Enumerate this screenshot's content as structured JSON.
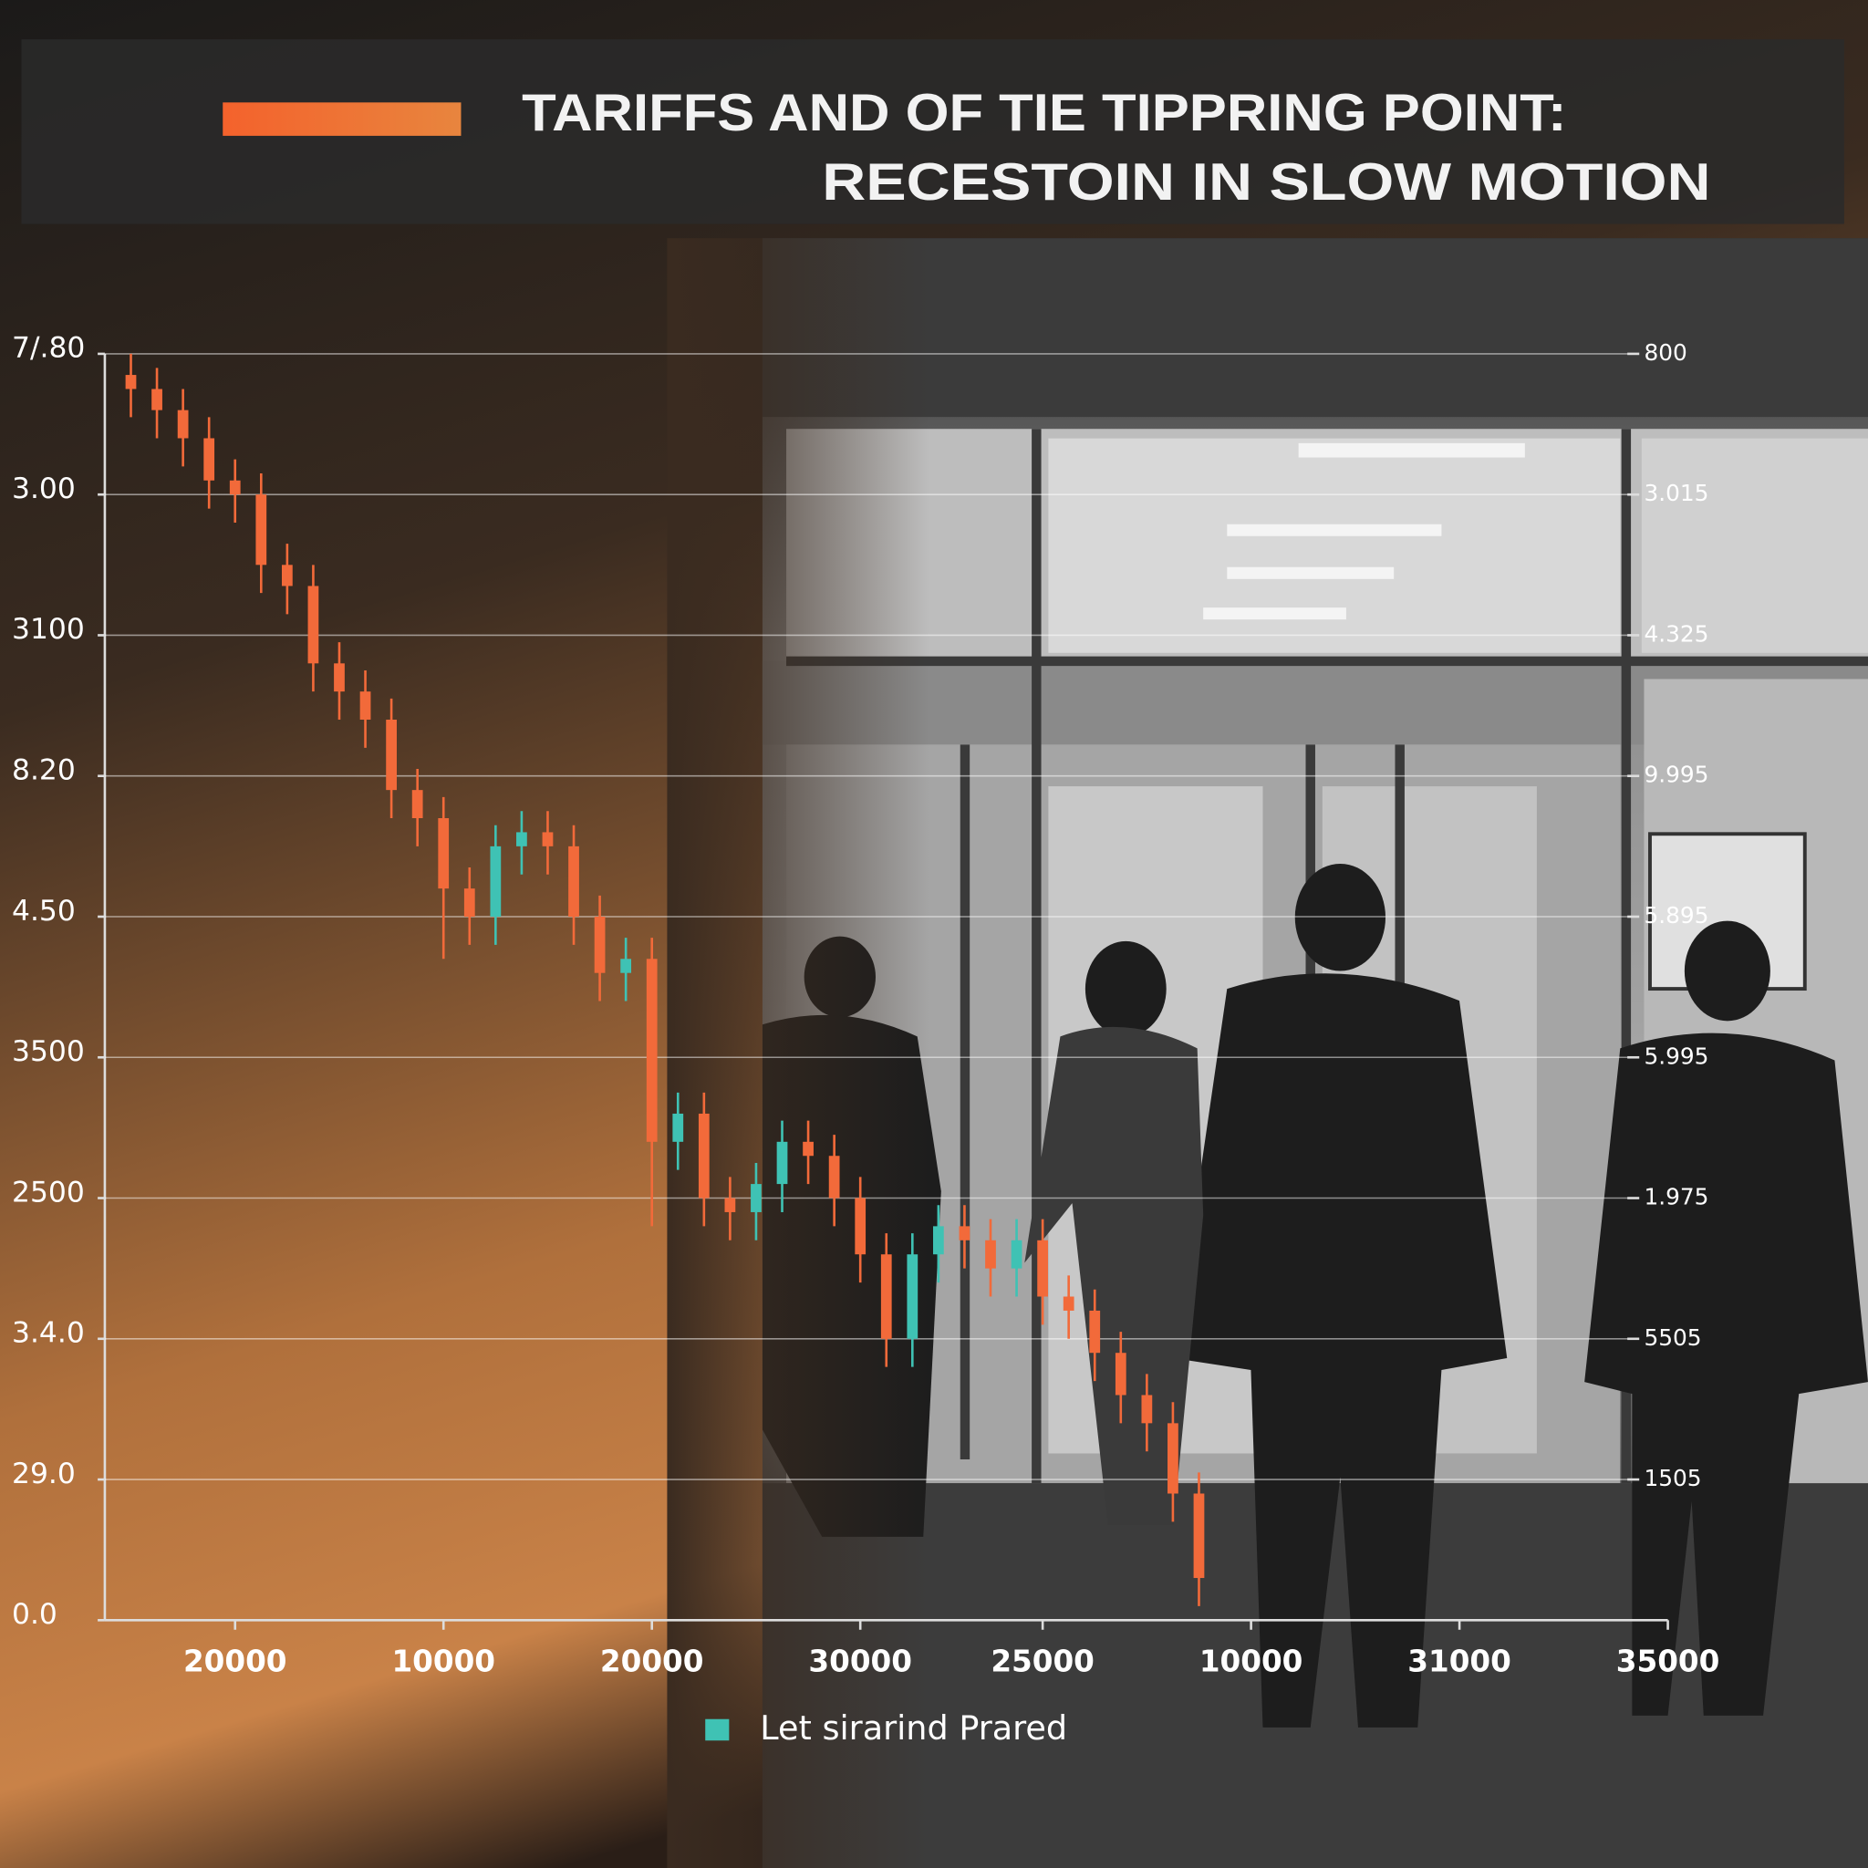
{
  "chart_data": {
    "type": "candlestick",
    "title": "TARIFFS AND OF TIE TIPPRING POINT:",
    "subtitle": "RECESTOIN IN SLOW MOTION",
    "x": [
      1,
      2,
      3,
      4,
      5,
      6,
      7,
      8,
      9,
      10,
      11,
      12,
      13,
      14,
      15,
      16,
      17,
      18,
      19,
      20,
      21,
      22,
      23,
      24,
      25,
      26,
      27,
      28,
      29,
      30,
      31,
      32,
      33,
      34,
      35,
      36,
      37,
      38,
      39,
      40,
      41,
      42
    ],
    "series": [
      {
        "name": "Let sirarind Prared",
        "color": "#3fc2b4",
        "down_color": "#f26a3a",
        "open": [
          8.85,
          8.75,
          8.6,
          8.4,
          8.1,
          8.0,
          7.5,
          7.35,
          6.8,
          6.6,
          6.4,
          5.9,
          5.7,
          5.2,
          5.0,
          5.5,
          5.6,
          5.5,
          5.0,
          4.6,
          4.7,
          3.4,
          3.6,
          3.0,
          2.9,
          3.1,
          3.4,
          3.3,
          3.0,
          2.6,
          2.0,
          2.6,
          2.8,
          2.7,
          2.5,
          2.7,
          2.3,
          2.2,
          1.9,
          1.6,
          1.4,
          0.9
        ],
        "high": [
          9.0,
          8.9,
          8.75,
          8.55,
          8.25,
          8.15,
          7.65,
          7.5,
          6.95,
          6.75,
          6.55,
          6.05,
          5.85,
          5.35,
          5.65,
          5.75,
          5.75,
          5.65,
          5.15,
          4.85,
          4.85,
          3.75,
          3.75,
          3.15,
          3.25,
          3.55,
          3.55,
          3.45,
          3.15,
          2.75,
          2.75,
          2.95,
          2.95,
          2.85,
          2.85,
          2.85,
          2.45,
          2.35,
          2.05,
          1.75,
          1.55,
          1.05
        ],
        "low": [
          8.55,
          8.4,
          8.2,
          7.9,
          7.8,
          7.3,
          7.15,
          6.6,
          6.4,
          6.2,
          5.7,
          5.5,
          4.7,
          4.8,
          4.8,
          5.3,
          5.3,
          4.8,
          4.4,
          4.4,
          2.8,
          3.2,
          2.8,
          2.7,
          2.7,
          2.9,
          3.1,
          2.8,
          2.4,
          1.8,
          1.8,
          2.4,
          2.5,
          2.3,
          2.3,
          2.1,
          2.0,
          1.7,
          1.4,
          1.2,
          0.7,
          0.1
        ],
        "close": [
          8.75,
          8.6,
          8.4,
          8.1,
          8.0,
          7.5,
          7.35,
          6.8,
          6.6,
          6.4,
          5.9,
          5.7,
          5.2,
          5.0,
          5.5,
          5.6,
          5.5,
          5.0,
          4.6,
          4.7,
          3.4,
          3.6,
          3.0,
          2.9,
          3.1,
          3.4,
          3.3,
          3.0,
          2.6,
          2.0,
          2.6,
          2.8,
          2.7,
          2.5,
          2.7,
          2.3,
          2.2,
          1.9,
          1.6,
          1.4,
          0.9,
          0.3
        ]
      }
    ],
    "xlim": [
      0,
      60
    ],
    "xticks": [
      {
        "value": 5,
        "label": "20000"
      },
      {
        "value": 13,
        "label": "10000"
      },
      {
        "value": 21,
        "label": "20000"
      },
      {
        "value": 29,
        "label": "30000"
      },
      {
        "value": 36,
        "label": "25000"
      },
      {
        "value": 44,
        "label": "10000"
      },
      {
        "value": 52,
        "label": "31000"
      },
      {
        "value": 60,
        "label": "35000"
      }
    ],
    "ylim": [
      0,
      9
    ],
    "yticks": [
      {
        "value": 0,
        "label": "0.0"
      },
      {
        "value": 1,
        "label": "29.0"
      },
      {
        "value": 2,
        "label": "3.4.0"
      },
      {
        "value": 3,
        "label": "2500"
      },
      {
        "value": 4,
        "label": "3500"
      },
      {
        "value": 5,
        "label": "4.50"
      },
      {
        "value": 6,
        "label": "8.20"
      },
      {
        "value": 7,
        "label": "3100"
      },
      {
        "value": 8,
        "label": "3.00"
      },
      {
        "value": 9,
        "label": "7/.80"
      }
    ],
    "y2lim": [
      0,
      9
    ],
    "y2ticks": [
      {
        "value": 1,
        "label": "1505"
      },
      {
        "value": 2,
        "label": "5505"
      },
      {
        "value": 3,
        "label": "1.975"
      },
      {
        "value": 4,
        "label": "5.995"
      },
      {
        "value": 5,
        "label": "5.895"
      },
      {
        "value": 6,
        "label": "9.995"
      },
      {
        "value": 7,
        "label": "4.325"
      },
      {
        "value": 8,
        "label": "3.015"
      },
      {
        "value": 9,
        "label": "800"
      }
    ],
    "grid": true
  }
}
